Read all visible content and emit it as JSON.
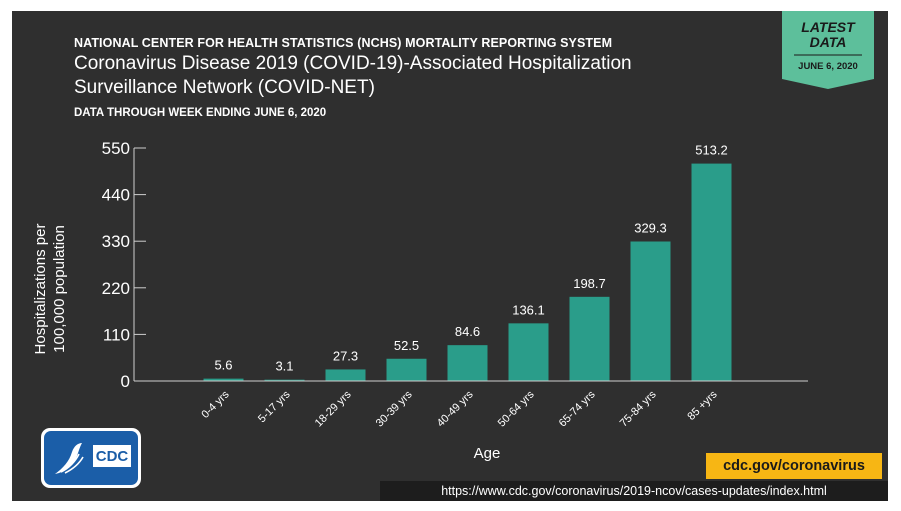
{
  "header": {
    "org": "NATIONAL CENTER FOR HEALTH STATISTICS (NCHS) MORTALITY REPORTING SYSTEM",
    "title_line1": "Coronavirus Disease 2019 (COVID-19)-Associated Hospitalization",
    "title_line2": "Surveillance Network (COVID-NET)",
    "subtitle": "DATA THROUGH WEEK ENDING JUNE 6, 2020"
  },
  "badge": {
    "line1": "LATEST",
    "line2": "DATA",
    "date": "JUNE 6, 2020"
  },
  "logo": {
    "text": "CDC"
  },
  "colors": {
    "background": "#2f2f2f",
    "bar": "#2a9d8a",
    "accent": "#f7b614",
    "badge": "#5dbf9b"
  },
  "footer": {
    "site": "cdc.gov/coronavirus",
    "url": "https://www.cdc.gov/coronavirus/2019-ncov/cases-updates/index.html"
  },
  "chart_data": {
    "type": "bar",
    "categories": [
      "0-4 yrs",
      "5-17 yrs",
      "18-29 yrs",
      "30-39 yrs",
      "40-49 yrs",
      "50-64 yrs",
      "65-74 yrs",
      "75-84 yrs",
      "85 +yrs"
    ],
    "values": [
      5.6,
      3.1,
      27.3,
      52.5,
      84.6,
      136.1,
      198.7,
      329.3,
      513.2
    ],
    "data_labels": [
      "5.6",
      "3.1",
      "27.3",
      "52.5",
      "84.6",
      "136.1",
      "198.7",
      "329.3",
      "513.2"
    ],
    "xlabel": "Age",
    "ylabel_line1": "Hospitalizations per",
    "ylabel_line2": "100,000 population",
    "yticks": [
      0,
      110,
      220,
      330,
      440,
      550
    ],
    "ytick_labels": [
      "0",
      "110",
      "220",
      "330",
      "440",
      "550"
    ],
    "ylim": [
      0,
      550
    ],
    "grid": false,
    "legend": "none"
  }
}
